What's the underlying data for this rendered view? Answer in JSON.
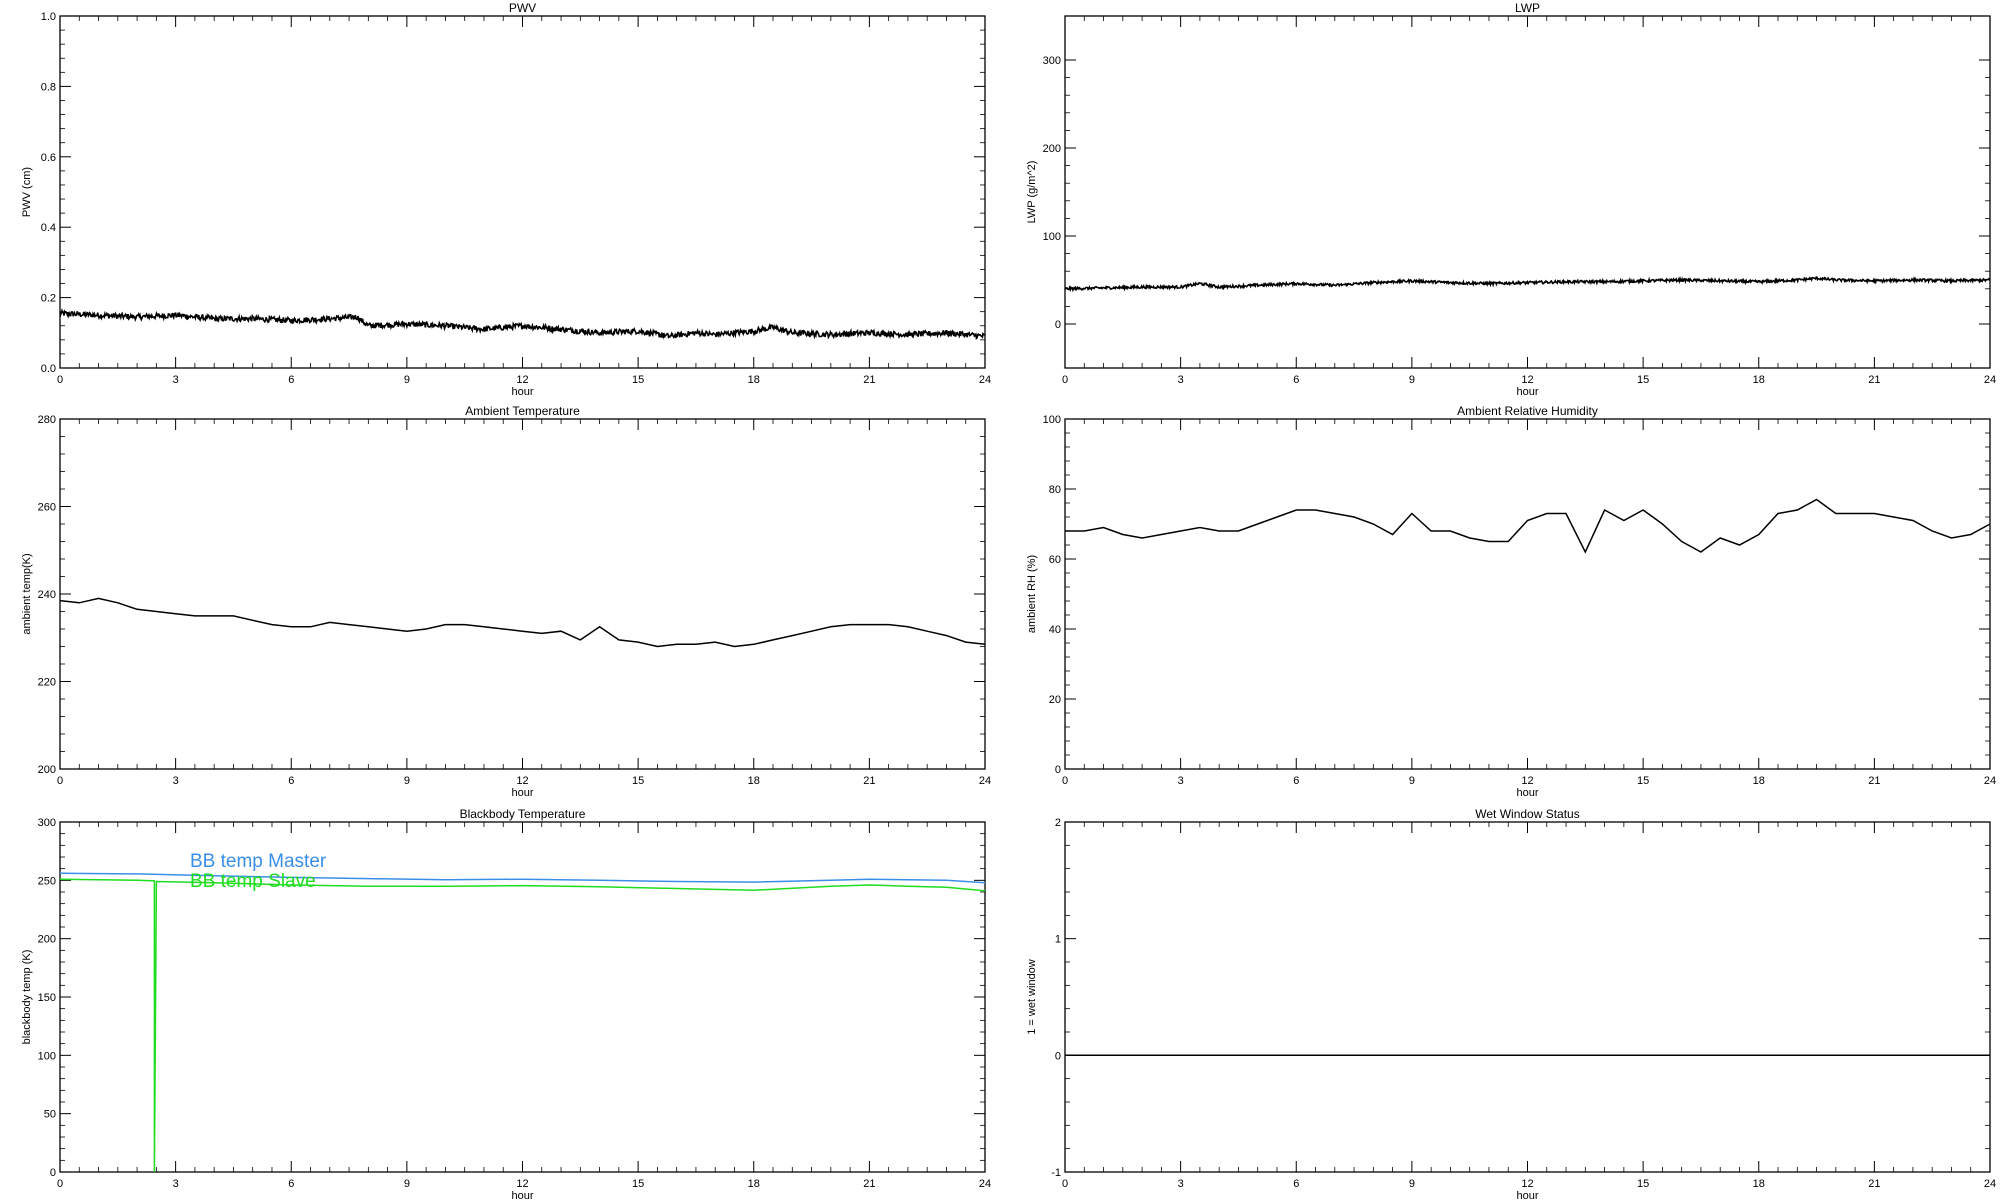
{
  "colors": {
    "axis": "#000000",
    "trace": "#000000",
    "master": "#3b8ee8",
    "slave": "#1fdc1f"
  },
  "chart_data": [
    {
      "type": "line",
      "title": "PWV",
      "xlabel": "hour",
      "ylabel": "PWV (cm)",
      "xlim": [
        0,
        24
      ],
      "ylim": [
        0,
        1.0
      ],
      "xticks": [
        0,
        3,
        6,
        9,
        12,
        15,
        18,
        21,
        24
      ],
      "yticks": [
        0.0,
        0.2,
        0.4,
        0.6,
        0.8,
        1.0
      ],
      "ytick_labels": [
        "0.0",
        "0.2",
        "0.4",
        "0.6",
        "0.8",
        "1.0"
      ],
      "style": "noisy",
      "series": [
        {
          "color": "trace",
          "x": [
            0,
            1,
            2,
            3,
            3.5,
            4,
            5,
            6,
            7,
            7.7,
            8,
            9,
            10,
            11,
            12,
            13,
            14,
            15,
            15.8,
            16.5,
            17,
            18,
            18.5,
            19,
            20,
            21,
            22,
            23,
            24
          ],
          "y": [
            0.155,
            0.15,
            0.145,
            0.15,
            0.145,
            0.14,
            0.14,
            0.135,
            0.14,
            0.145,
            0.12,
            0.125,
            0.12,
            0.11,
            0.12,
            0.11,
            0.1,
            0.105,
            0.09,
            0.1,
            0.095,
            0.105,
            0.115,
            0.1,
            0.095,
            0.1,
            0.095,
            0.1,
            0.09
          ],
          "noise": 0.008
        }
      ]
    },
    {
      "type": "line",
      "title": "LWP",
      "xlabel": "hour",
      "ylabel": "LWP (g/m^2)",
      "xlim": [
        0,
        24
      ],
      "ylim": [
        -50,
        350
      ],
      "xticks": [
        0,
        3,
        6,
        9,
        12,
        15,
        18,
        21,
        24
      ],
      "yticks": [
        0,
        100,
        200,
        300
      ],
      "ytick_labels": [
        "0",
        "100",
        "200",
        "300"
      ],
      "style": "noisy",
      "series": [
        {
          "color": "trace",
          "x": [
            0,
            1,
            2,
            3,
            3.5,
            4,
            5,
            6,
            7,
            8,
            9,
            10,
            11,
            12,
            13,
            14,
            15,
            16,
            17,
            18,
            19,
            19.5,
            20,
            21,
            22,
            23,
            24
          ],
          "y": [
            40,
            41,
            42,
            42,
            46,
            42,
            44,
            46,
            44,
            47,
            49,
            47,
            46,
            47,
            48,
            48,
            49,
            50,
            49,
            48,
            50,
            52,
            50,
            49,
            50,
            49,
            50
          ],
          "noise": 1.5
        }
      ]
    },
    {
      "type": "line",
      "title": "Ambient Temperature",
      "xlabel": "hour",
      "ylabel": "ambient temp(K)",
      "xlim": [
        0,
        24
      ],
      "ylim": [
        200,
        280
      ],
      "xticks": [
        0,
        3,
        6,
        9,
        12,
        15,
        18,
        21,
        24
      ],
      "yticks": [
        200,
        220,
        240,
        260,
        280
      ],
      "ytick_labels": [
        "200",
        "220",
        "240",
        "260",
        "280"
      ],
      "series": [
        {
          "color": "trace",
          "x": [
            0,
            0.5,
            1,
            1.5,
            2,
            2.5,
            3,
            3.5,
            4,
            4.5,
            5,
            5.5,
            6,
            6.5,
            7,
            7.5,
            8,
            8.5,
            9,
            9.5,
            10,
            10.5,
            11,
            11.5,
            12,
            12.5,
            13,
            13.5,
            14,
            14.5,
            15,
            15.5,
            16,
            16.5,
            17,
            17.5,
            18,
            18.5,
            19,
            19.5,
            20,
            20.5,
            21,
            21.5,
            22,
            22.5,
            23,
            23.5,
            24
          ],
          "y": [
            238.5,
            238,
            239,
            238,
            236.5,
            236,
            235.5,
            235,
            235,
            235,
            234,
            233,
            232.5,
            232.5,
            233.5,
            233,
            232.5,
            232,
            231.5,
            232,
            233,
            233,
            232.5,
            232,
            231.5,
            231,
            231.5,
            229.5,
            232.5,
            229.5,
            229,
            228,
            228.5,
            228.5,
            229,
            228,
            228.5,
            229.5,
            230.5,
            231.5,
            232.5,
            233,
            233,
            233,
            232.5,
            231.5,
            230.5,
            229,
            228.5
          ]
        }
      ]
    },
    {
      "type": "line",
      "title": "Ambient Relative Humidity",
      "xlabel": "hour",
      "ylabel": "ambient RH (%)",
      "xlim": [
        0,
        24
      ],
      "ylim": [
        0,
        100
      ],
      "xticks": [
        0,
        3,
        6,
        9,
        12,
        15,
        18,
        21,
        24
      ],
      "yticks": [
        0,
        20,
        40,
        60,
        80,
        100
      ],
      "ytick_labels": [
        "0",
        "20",
        "40",
        "60",
        "80",
        "100"
      ],
      "series": [
        {
          "color": "trace",
          "x": [
            0,
            0.5,
            1,
            1.5,
            2,
            2.5,
            3,
            3.5,
            4,
            4.5,
            5,
            5.5,
            6,
            6.5,
            7,
            7.5,
            8,
            8.5,
            9,
            9.5,
            10,
            10.5,
            11,
            11.5,
            12,
            12.5,
            13,
            13.5,
            14,
            14.5,
            15,
            15.5,
            16,
            16.5,
            17,
            17.5,
            18,
            18.5,
            19,
            19.5,
            20,
            20.5,
            21,
            21.5,
            22,
            22.5,
            23,
            23.5,
            24
          ],
          "y": [
            68,
            68,
            69,
            67,
            66,
            67,
            68,
            69,
            68,
            68,
            70,
            72,
            74,
            74,
            73,
            72,
            70,
            67,
            73,
            68,
            68,
            66,
            65,
            65,
            71,
            73,
            73,
            62,
            74,
            71,
            74,
            70,
            65,
            62,
            66,
            64,
            67,
            73,
            74,
            77,
            73,
            73,
            73,
            72,
            71,
            68,
            66,
            67,
            70
          ]
        }
      ]
    },
    {
      "type": "line",
      "title": "Blackbody Temperature",
      "xlabel": "hour",
      "ylabel": "blackbody temp (K)",
      "xlim": [
        0,
        24
      ],
      "ylim": [
        0,
        300
      ],
      "xticks": [
        0,
        3,
        6,
        9,
        12,
        15,
        18,
        21,
        24
      ],
      "yticks": [
        0,
        50,
        100,
        150,
        200,
        250,
        300
      ],
      "ytick_labels": [
        "0",
        "50",
        "100",
        "150",
        "200",
        "250",
        "300"
      ],
      "legend": "top-left",
      "series": [
        {
          "name": "BB temp Master",
          "color": "master",
          "x": [
            0,
            2,
            4,
            6,
            8,
            10,
            12,
            14,
            16,
            18,
            20,
            21,
            22,
            23,
            24
          ],
          "y": [
            256,
            255.5,
            254,
            252.5,
            251.5,
            250.5,
            251,
            250,
            249,
            248.5,
            250,
            251,
            250.5,
            250,
            248
          ]
        },
        {
          "name": "BB temp Slave",
          "color": "slave",
          "x": [
            0,
            2,
            2.45,
            2.45,
            2.5,
            4,
            6,
            8,
            10,
            12,
            14,
            16,
            18,
            20,
            21,
            22,
            23,
            24
          ],
          "y": [
            251,
            250,
            249.5,
            0,
            249,
            248,
            246,
            245,
            245,
            245.5,
            244.5,
            243,
            241.5,
            245,
            246,
            245,
            244,
            241
          ]
        }
      ]
    },
    {
      "type": "line",
      "title": "Wet Window Status",
      "xlabel": "hour",
      "ylabel": "1 = wet window",
      "xlim": [
        0,
        24
      ],
      "ylim": [
        -1,
        2
      ],
      "xticks": [
        0,
        3,
        6,
        9,
        12,
        15,
        18,
        21,
        24
      ],
      "yticks": [
        -1,
        0,
        1,
        2
      ],
      "ytick_labels": [
        "-1",
        "0",
        "1",
        "2"
      ],
      "series": [
        {
          "color": "trace",
          "x": [
            0,
            24
          ],
          "y": [
            0,
            0
          ]
        }
      ]
    }
  ]
}
